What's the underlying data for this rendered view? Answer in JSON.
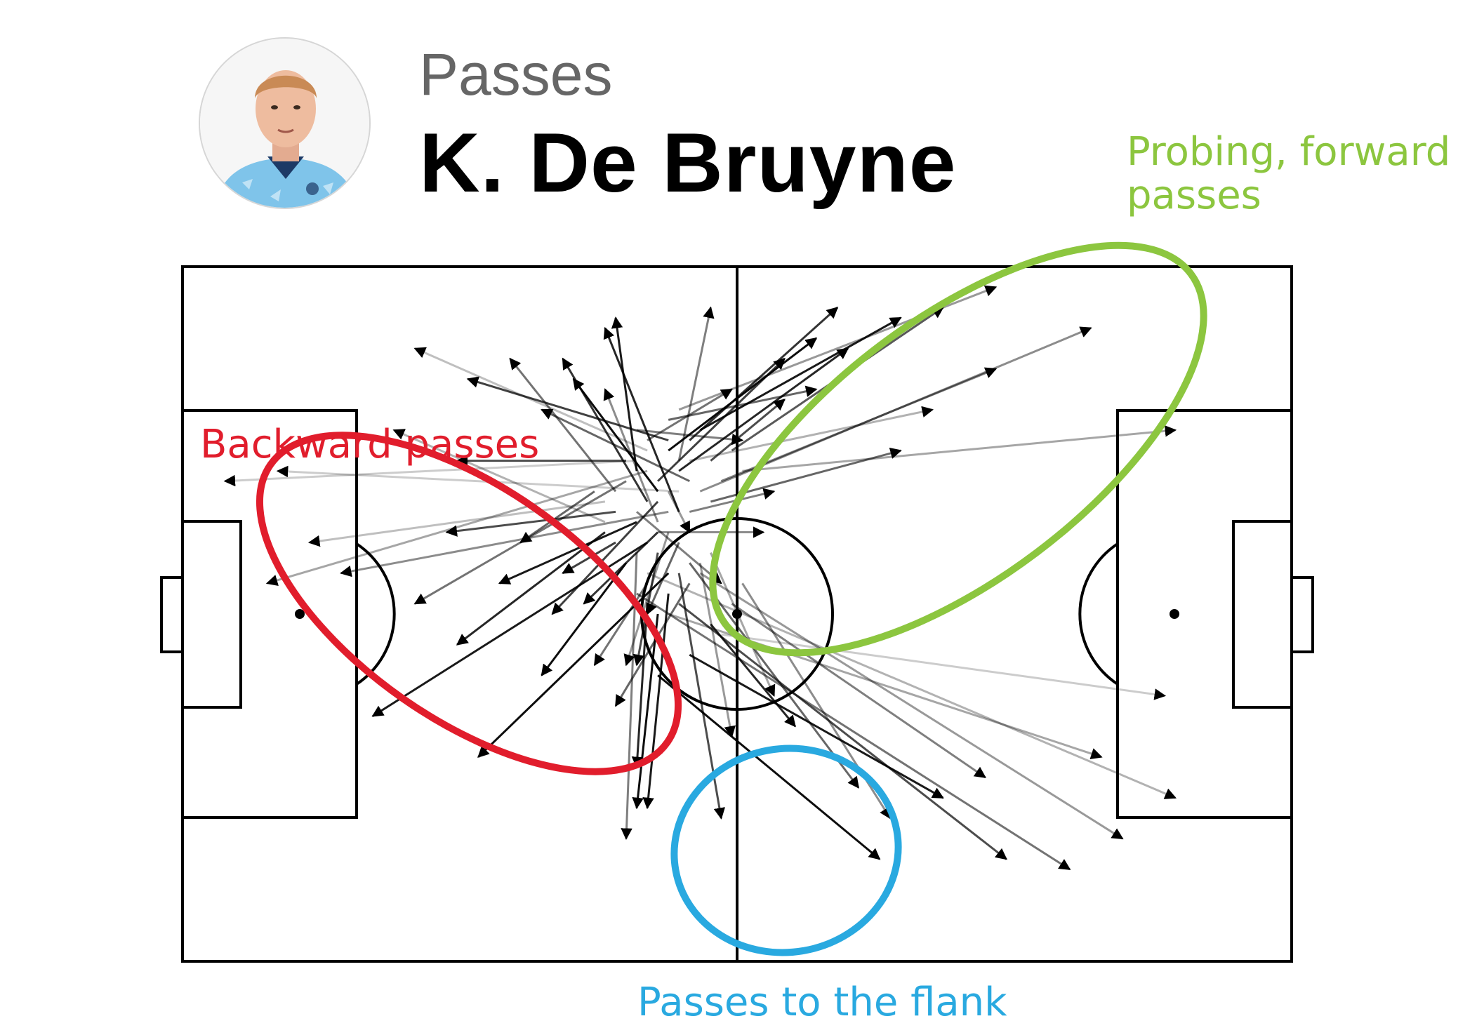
{
  "header": {
    "kicker": "Passes",
    "player_name": "K. De Bruyne"
  },
  "annotations": [
    {
      "id": "forward",
      "text_lines": [
        "Probing, forward",
        "passes"
      ],
      "color": "#8cc63f"
    },
    {
      "id": "backward",
      "text_lines": [
        "Backward passes"
      ],
      "color": "#e11d2c"
    },
    {
      "id": "flank",
      "text_lines": [
        "Passes to the flank"
      ],
      "color": "#29a9e0"
    }
  ],
  "icons": {
    "player_photo": "player-portrait-icon"
  },
  "colors": {
    "pitch_lines": "#000000",
    "pass_arrow": "#000000",
    "background": "#ffffff"
  },
  "pass_map": {
    "pitch": {
      "length": 105,
      "width": 68
    },
    "passes": [
      [
        45,
        40,
        66,
        58,
        0.95
      ],
      [
        48,
        38,
        72,
        52,
        0.9
      ],
      [
        50,
        35,
        58,
        45,
        0.85
      ],
      [
        47,
        33,
        78,
        58,
        0.7
      ],
      [
        43,
        32,
        84,
        59,
        0.55
      ],
      [
        49,
        30,
        89,
        56,
        0.4
      ],
      [
        52,
        33,
        76,
        50,
        0.5
      ],
      [
        44,
        30,
        94,
        52,
        0.3
      ],
      [
        46,
        34,
        87,
        48,
        0.35
      ],
      [
        51,
        36,
        93,
        42,
        0.2
      ],
      [
        48,
        29,
        64,
        51,
        0.6
      ],
      [
        53,
        31,
        67,
        54,
        0.45
      ],
      [
        46,
        30,
        28,
        48,
        0.95
      ],
      [
        44,
        27,
        18,
        44,
        0.9
      ],
      [
        42,
        29,
        34,
        40,
        0.95
      ],
      [
        40,
        26,
        26,
        37,
        0.85
      ],
      [
        43,
        25,
        30,
        31,
        0.9
      ],
      [
        41,
        24,
        25,
        26,
        0.7
      ],
      [
        45,
        23,
        35,
        34,
        0.75
      ],
      [
        39,
        22,
        32,
        27,
        0.6
      ],
      [
        42,
        21,
        22,
        33,
        0.55
      ],
      [
        46,
        24,
        15,
        30,
        0.45
      ],
      [
        44,
        20,
        8,
        31,
        0.35
      ],
      [
        40,
        23,
        12,
        27,
        0.25
      ],
      [
        47,
        22,
        9,
        20,
        0.2
      ],
      [
        43,
        19,
        4,
        21,
        0.2
      ],
      [
        45,
        26,
        38,
        33,
        0.8
      ],
      [
        41,
        27,
        36,
        30,
        0.75
      ],
      [
        45,
        34,
        43,
        53,
        0.95
      ],
      [
        46,
        32,
        44,
        53,
        0.9
      ],
      [
        44,
        33,
        43,
        49,
        0.85
      ],
      [
        47,
        30,
        51,
        54,
        0.7
      ],
      [
        43,
        28,
        42,
        56,
        0.5
      ],
      [
        48,
        31,
        41,
        43,
        0.6
      ],
      [
        44,
        31,
        39,
        39,
        0.55
      ],
      [
        49,
        29,
        52,
        46,
        0.4
      ],
      [
        46,
        26,
        42,
        39,
        0.4
      ],
      [
        50,
        28,
        56,
        42,
        0.35
      ],
      [
        45,
        28,
        43,
        39,
        0.7
      ],
      [
        47,
        27,
        44,
        34,
        0.6
      ],
      [
        46,
        18,
        60,
        7,
        0.95
      ],
      [
        49,
        16,
        68,
        5,
        0.9
      ],
      [
        47,
        20,
        63,
        8,
        0.85
      ],
      [
        48,
        17,
        62,
        4,
        0.8
      ],
      [
        45,
        21,
        57,
        9,
        0.75
      ],
      [
        50,
        19,
        57,
        13,
        0.7
      ],
      [
        52,
        18,
        72,
        4,
        0.65
      ],
      [
        46,
        15,
        60,
        12,
        0.6
      ],
      [
        44,
        17,
        52,
        12,
        0.55
      ],
      [
        51,
        21,
        77,
        10,
        0.5
      ],
      [
        49,
        22,
        86,
        6,
        0.45
      ],
      [
        47,
        14,
        77,
        2,
        0.4
      ],
      [
        53,
        20,
        94,
        16,
        0.35
      ],
      [
        48,
        19,
        71,
        14,
        0.3
      ],
      [
        50,
        23,
        68,
        18,
        0.6
      ],
      [
        43,
        16,
        53,
        17,
        0.5
      ],
      [
        45,
        22,
        37,
        11,
        0.95
      ],
      [
        43,
        20,
        41,
        5,
        0.9
      ],
      [
        47,
        24,
        40,
        6,
        0.85
      ],
      [
        44,
        23,
        36,
        9,
        0.8
      ],
      [
        46,
        17,
        27,
        11,
        0.75
      ],
      [
        42,
        19,
        26,
        19,
        0.7
      ],
      [
        48,
        21,
        34,
        14,
        0.6
      ],
      [
        41,
        22,
        31,
        9,
        0.55
      ],
      [
        47,
        19,
        50,
        4,
        0.5
      ],
      [
        45,
        25,
        40,
        12,
        0.45
      ],
      [
        40,
        25,
        20,
        16,
        0.3
      ],
      [
        44,
        18,
        22,
        8,
        0.25
      ],
      [
        48,
        24,
        56,
        22,
        0.5
      ],
      [
        45,
        26,
        55,
        26,
        0.45
      ],
      [
        43,
        24,
        51,
        31,
        0.5
      ],
      [
        46,
        22,
        48,
        26,
        0.4
      ]
    ]
  }
}
